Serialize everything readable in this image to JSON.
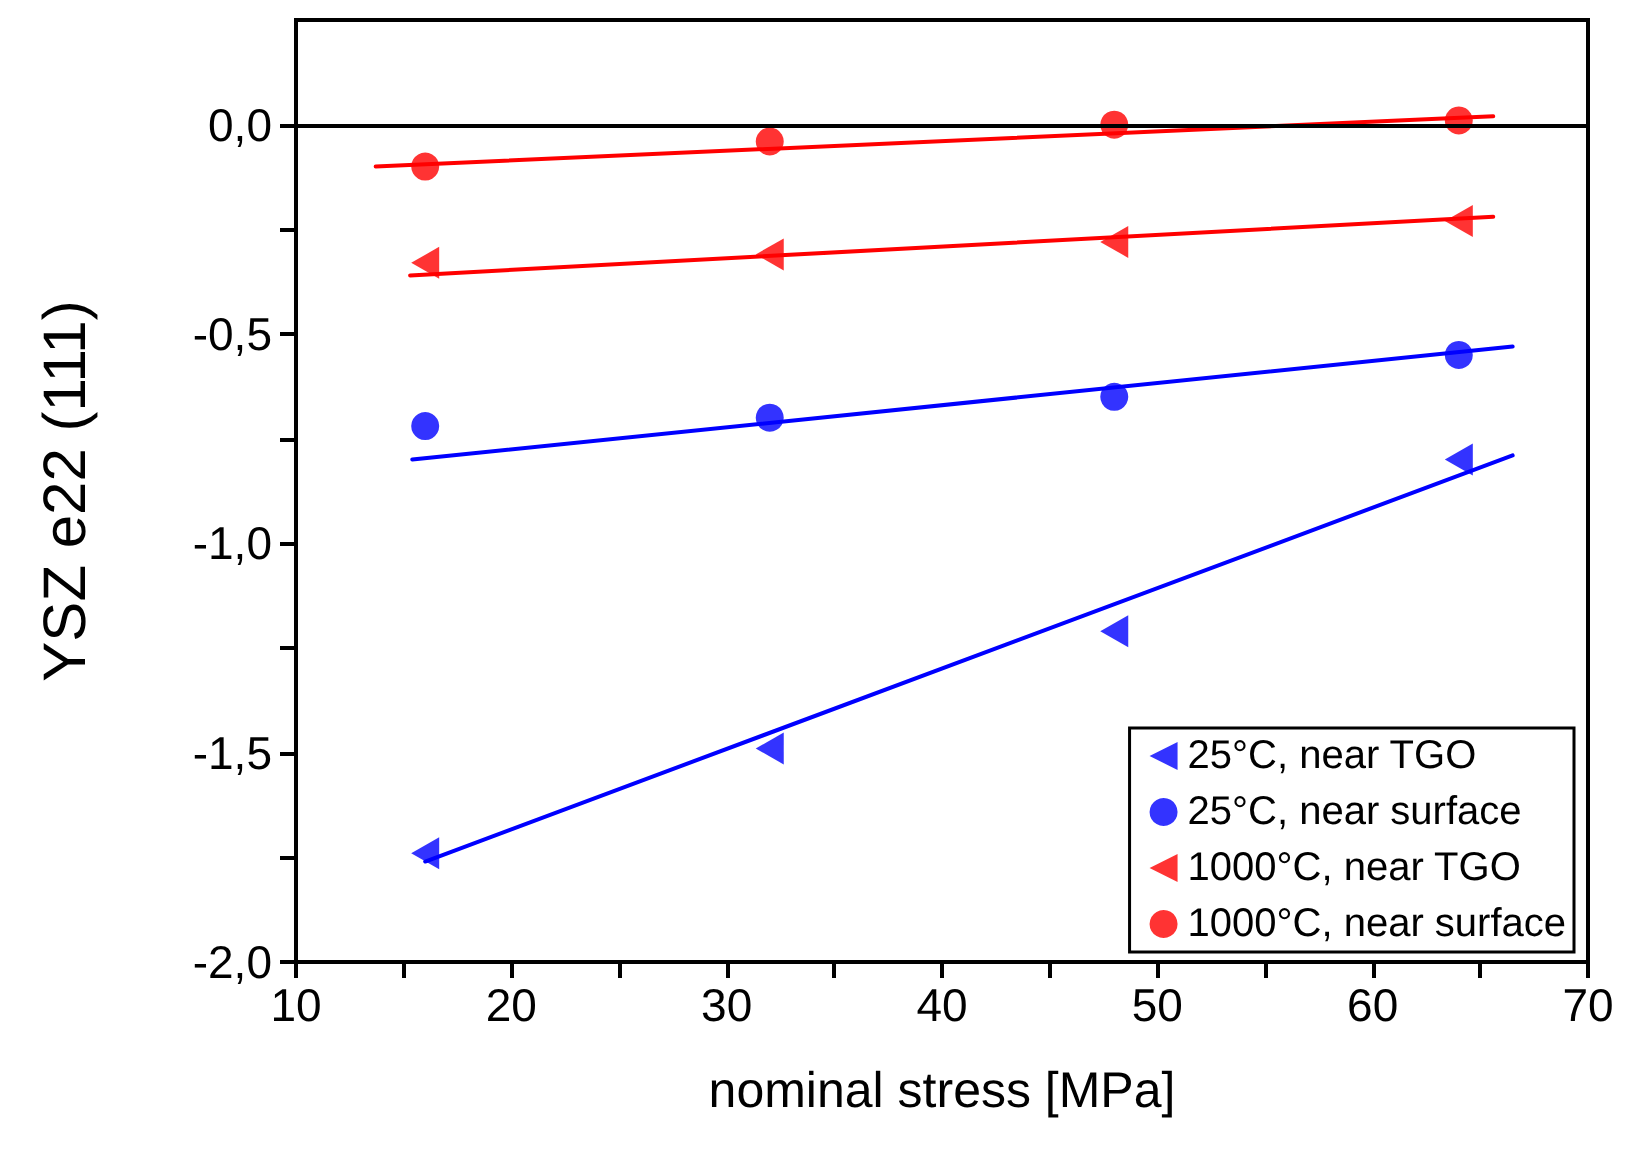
{
  "chart_data": {
    "type": "scatter",
    "xlabel": "nominal stress [MPa]",
    "ylabel": "YSZ e22 (111)",
    "xlim": [
      10,
      70
    ],
    "xticks": [
      10,
      {
        "value": 15,
        "label": null
      },
      20,
      {
        "value": 25,
        "label": null
      },
      30,
      {
        "value": 35,
        "label": null
      },
      40,
      {
        "value": 45,
        "label": null
      },
      50,
      {
        "value": 55,
        "label": null
      },
      60,
      {
        "value": 65,
        "label": null
      },
      70
    ],
    "ylim": [
      -2.0,
      0.25
    ],
    "yticks": [
      {
        "value": -2.0,
        "label": "-2,0"
      },
      {
        "value": -1.75,
        "label": null
      },
      {
        "value": -1.5,
        "label": "-1,5"
      },
      {
        "value": -1.25,
        "label": null
      },
      {
        "value": -1.0,
        "label": "-1,0"
      },
      {
        "value": -0.75,
        "label": null
      },
      {
        "value": -0.5,
        "label": "-0,5"
      },
      {
        "value": -0.25,
        "label": null
      },
      {
        "value": 0.0,
        "label": "0,0"
      }
    ],
    "grid": false,
    "legend": "bottom right",
    "ref_lines": [
      {
        "axis": "y",
        "value": 0,
        "color": "#000000"
      }
    ],
    "series": [
      {
        "name": "25°C, near TGO",
        "color": "#0000ff",
        "marker": "triangle",
        "x": [
          16,
          32,
          48,
          64
        ],
        "values": [
          -1.74,
          -1.49,
          -1.21,
          -0.8
        ]
      },
      {
        "name": "25°C, near surface",
        "color": "#0000ff",
        "marker": "circle",
        "x": [
          16,
          32,
          48,
          64
        ],
        "values": [
          -0.72,
          -0.7,
          -0.65,
          -0.55
        ]
      },
      {
        "name": "1000°C, near TGO",
        "color": "#ff0000",
        "marker": "triangle",
        "x": [
          16,
          32,
          48,
          64
        ],
        "values": [
          -0.33,
          -0.31,
          -0.28,
          -0.23
        ]
      },
      {
        "name": "1000°C, near surface",
        "color": "#ff0000",
        "marker": "circle",
        "x": [
          16,
          32,
          48,
          64
        ],
        "values": [
          -0.1,
          -0.04,
          0.0,
          0.01
        ]
      },
      {
        "type": "line",
        "color": "#0000ff",
        "marker": "none",
        "line_style": "solid",
        "x": [
          16,
          66.5
        ],
        "values": [
          -1.76,
          -0.79
        ]
      },
      {
        "type": "line",
        "color": "#0000ff",
        "marker": "none",
        "line_style": "solid",
        "x": [
          15.4,
          66.5
        ],
        "values": [
          -0.8,
          -0.53
        ]
      },
      {
        "type": "line",
        "color": "#ff0000",
        "marker": "none",
        "line_style": "solid",
        "x": [
          15.3,
          65.6
        ],
        "values": [
          -0.36,
          -0.22
        ]
      },
      {
        "type": "line",
        "color": "#ff0000",
        "marker": "none",
        "line_style": "solid",
        "x": [
          13.7,
          65.6
        ],
        "values": [
          -0.1,
          0.02
        ]
      }
    ]
  }
}
